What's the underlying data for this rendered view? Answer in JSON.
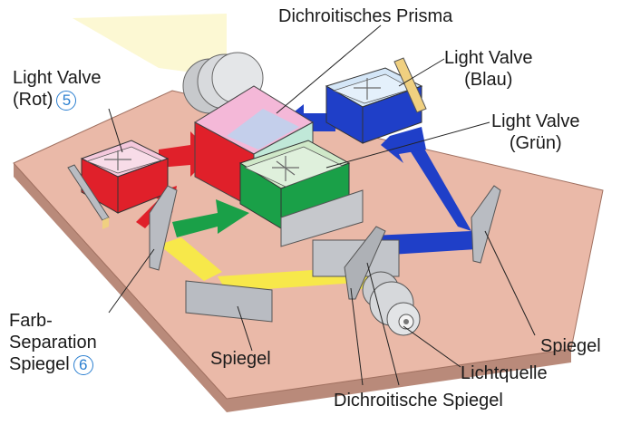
{
  "labels": {
    "prism": "Dichroitisches Prisma",
    "lv_red_line1": "Light Valve",
    "lv_red_line2": "(Rot)",
    "lv_red_num": "5",
    "lv_blue_line1": "Light Valve",
    "lv_blue_line2": "(Blau)",
    "lv_green_line1": "Light Valve",
    "lv_green_line2": "(Grün)",
    "farb_line1": "Farb-",
    "farb_line2": "Separation",
    "farb_line3": "Spiegel",
    "farb_num": "6",
    "spiegel_left": "Spiegel",
    "spiegel_right": "Spiegel",
    "lichtquelle": "Lichtquelle",
    "dichro_spiegel": "Dichroitische Spiegel"
  },
  "colors": {
    "board": "#e8b8a8",
    "red": "#e0202a",
    "green": "#1aa048",
    "blue": "#1f3fc8",
    "yellow": "#f7e84a",
    "mirror": "#b9bcc2"
  }
}
